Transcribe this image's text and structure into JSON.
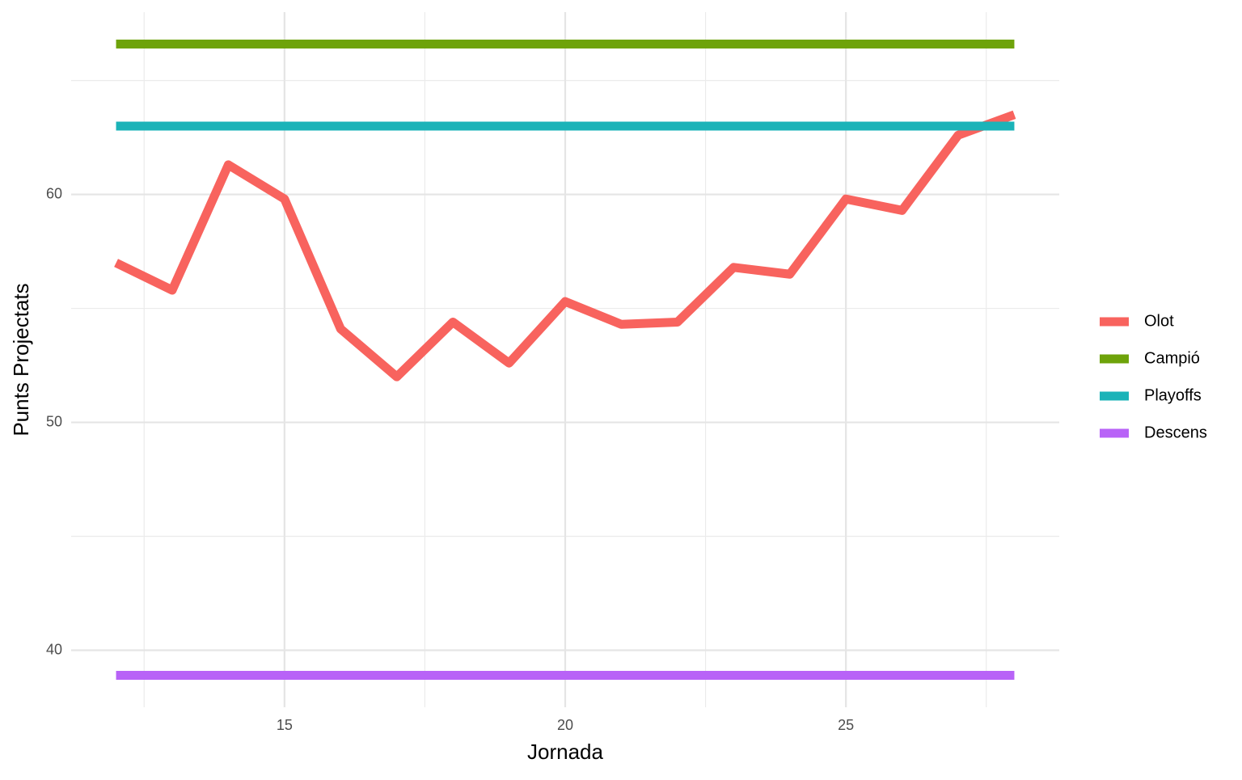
{
  "chart_data": {
    "type": "line",
    "x_label": "Jornada",
    "y_label": "Punts Projectats",
    "xlim": [
      11.2,
      28.8
    ],
    "xticks": [
      15,
      20,
      25
    ],
    "ylim": [
      37.5,
      68
    ],
    "yticks": [
      40,
      50,
      60
    ],
    "grid": true,
    "minor_grid": true,
    "legend": "right",
    "series": [
      {
        "name": "Olot",
        "color": "#f8635e",
        "x": [
          12,
          13,
          14,
          15,
          16,
          17,
          18,
          19,
          20,
          21,
          22,
          23,
          24,
          25,
          26,
          27,
          28
        ],
        "values": [
          57.0,
          55.8,
          61.3,
          59.8,
          54.1,
          52.0,
          54.4,
          52.6,
          55.3,
          54.3,
          54.4,
          56.8,
          56.5,
          59.8,
          59.3,
          62.6,
          63.5
        ]
      },
      {
        "name": "Campió",
        "color": "#6ea30a",
        "x": [
          12,
          28
        ],
        "values": [
          66.6,
          66.6
        ]
      },
      {
        "name": "Playoffs",
        "color": "#1bb3b8",
        "x": [
          12,
          28
        ],
        "values": [
          63.0,
          63.0
        ]
      },
      {
        "name": "Descens",
        "color": "#b863f7",
        "x": [
          12,
          28
        ],
        "values": [
          38.9,
          38.9
        ]
      }
    ]
  }
}
